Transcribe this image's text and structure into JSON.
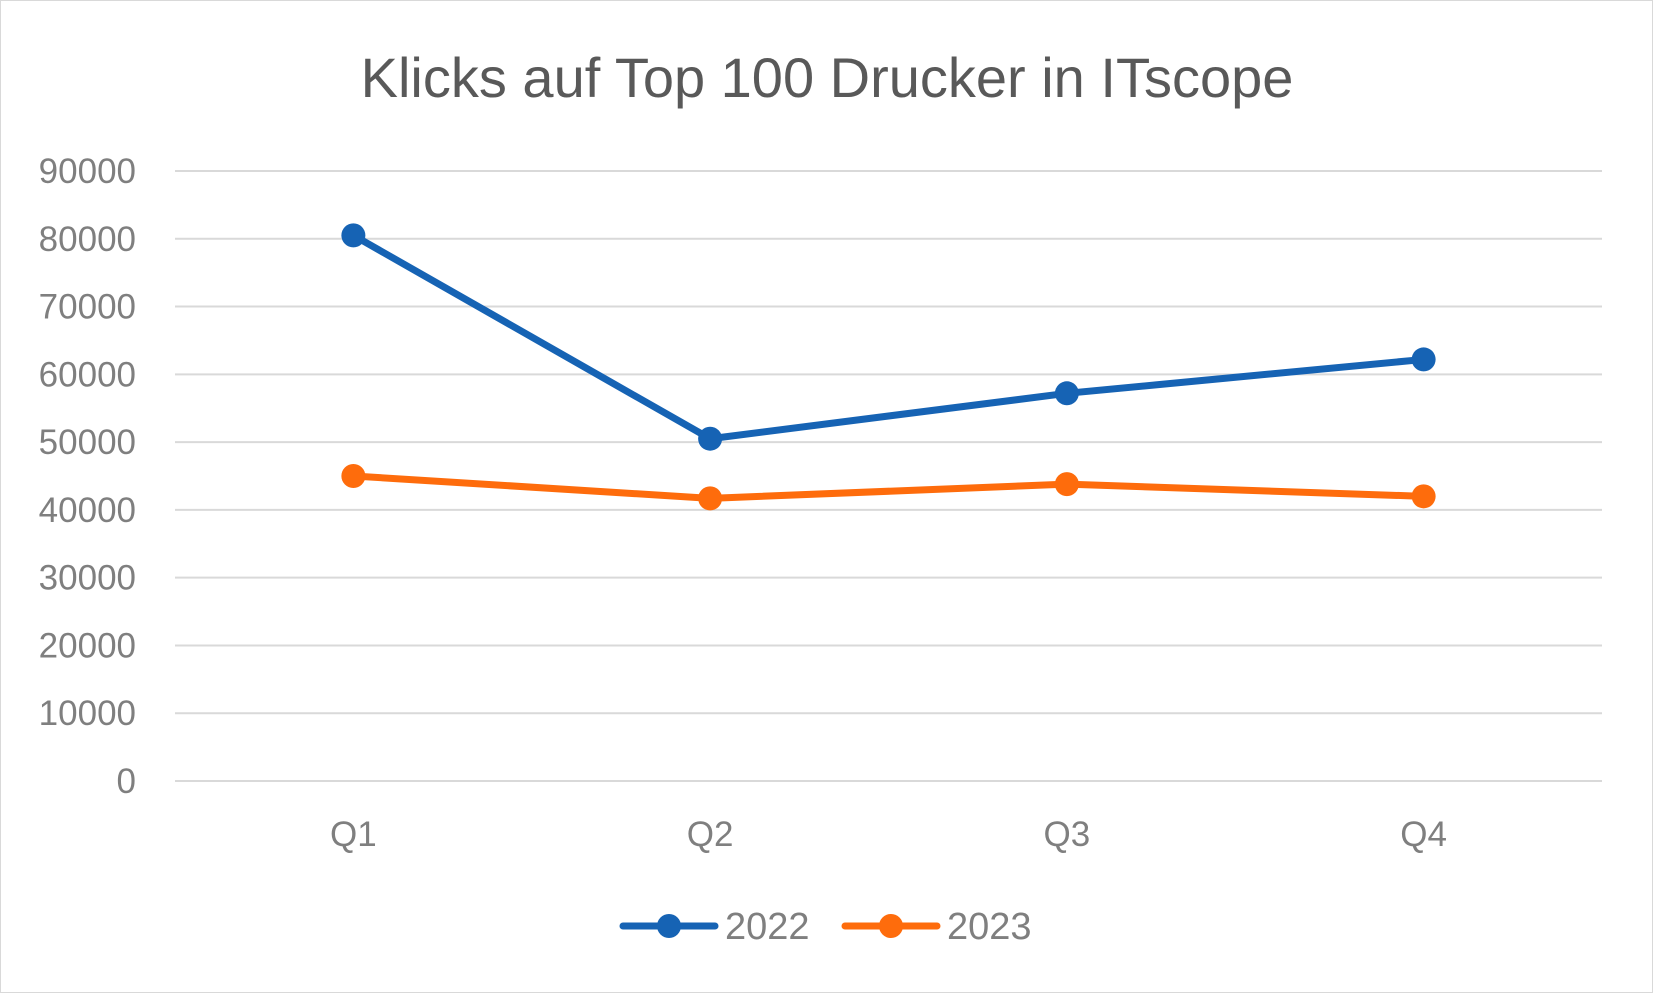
{
  "chart_data": {
    "type": "line",
    "title": "Klicks auf Top 100 Drucker in ITscope",
    "categories": [
      "Q1",
      "Q2",
      "Q3",
      "Q4"
    ],
    "series": [
      {
        "name": "2022",
        "color": "#1663b4",
        "values": [
          80500,
          50500,
          57200,
          62200
        ]
      },
      {
        "name": "2023",
        "color": "#fe6c0c",
        "values": [
          45000,
          41700,
          43800,
          42000
        ]
      }
    ],
    "ylim": [
      0,
      90000
    ],
    "yticks": [
      "0",
      "10000",
      "20000",
      "30000",
      "40000",
      "50000",
      "60000",
      "70000",
      "80000",
      "90000"
    ],
    "grid": true,
    "legend": "bottom"
  }
}
